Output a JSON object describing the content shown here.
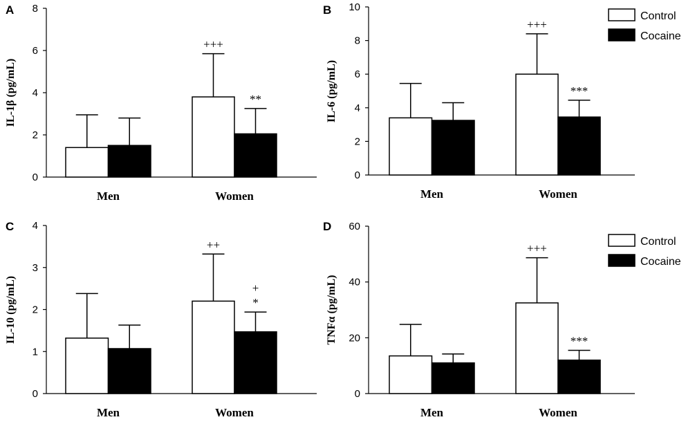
{
  "chart_data": [
    {
      "panel": "A",
      "type": "bar",
      "ylabel": "IL-1β (pg/mL)",
      "ylim": [
        0,
        8
      ],
      "yticks": [
        0,
        2,
        4,
        6,
        8
      ],
      "categories": [
        "Men",
        "Women"
      ],
      "series": [
        {
          "name": "Control",
          "values": [
            1.4,
            3.8
          ],
          "errors": [
            1.55,
            2.05
          ]
        },
        {
          "name": "Cocaine",
          "values": [
            1.5,
            2.05
          ],
          "errors": [
            1.3,
            1.2
          ]
        }
      ],
      "annotations": [
        {
          "category": "Women",
          "series": "Control",
          "lines": [
            "+++"
          ]
        },
        {
          "category": "Women",
          "series": "Cocaine",
          "lines": [
            "**"
          ]
        }
      ]
    },
    {
      "panel": "B",
      "type": "bar",
      "ylabel": "IL-6 (pg/mL)",
      "ylim": [
        0,
        10
      ],
      "yticks": [
        0,
        2,
        4,
        6,
        8,
        10
      ],
      "categories": [
        "Men",
        "Women"
      ],
      "series": [
        {
          "name": "Control",
          "values": [
            3.4,
            6.0
          ],
          "errors": [
            2.05,
            2.4
          ]
        },
        {
          "name": "Cocaine",
          "values": [
            3.25,
            3.45
          ],
          "errors": [
            1.05,
            1.0
          ]
        }
      ],
      "annotations": [
        {
          "category": "Women",
          "series": "Control",
          "lines": [
            "+++"
          ]
        },
        {
          "category": "Women",
          "series": "Cocaine",
          "lines": [
            "***"
          ]
        }
      ],
      "legend": [
        "Control",
        "Cocaine"
      ]
    },
    {
      "panel": "C",
      "type": "bar",
      "ylabel": "IL-10 (pg/mL)",
      "ylim": [
        0,
        4
      ],
      "yticks": [
        0,
        1,
        2,
        3,
        4
      ],
      "categories": [
        "Men",
        "Women"
      ],
      "series": [
        {
          "name": "Control",
          "values": [
            1.32,
            2.2
          ],
          "errors": [
            1.06,
            1.12
          ]
        },
        {
          "name": "Cocaine",
          "values": [
            1.07,
            1.47
          ],
          "errors": [
            0.56,
            0.47
          ]
        }
      ],
      "annotations": [
        {
          "category": "Women",
          "series": "Control",
          "lines": [
            "++"
          ]
        },
        {
          "category": "Women",
          "series": "Cocaine",
          "lines": [
            "+",
            "*"
          ]
        }
      ]
    },
    {
      "panel": "D",
      "type": "bar",
      "ylabel": "TNFα (pg/mL)",
      "ylim": [
        0,
        60
      ],
      "yticks": [
        0,
        20,
        40,
        60
      ],
      "categories": [
        "Men",
        "Women"
      ],
      "series": [
        {
          "name": "Control",
          "values": [
            13.5,
            32.5
          ],
          "errors": [
            11.3,
            16.2
          ]
        },
        {
          "name": "Cocaine",
          "values": [
            11.0,
            12.0
          ],
          "errors": [
            3.2,
            3.5
          ]
        }
      ],
      "annotations": [
        {
          "category": "Women",
          "series": "Control",
          "lines": [
            "+++"
          ]
        },
        {
          "category": "Women",
          "series": "Cocaine",
          "lines": [
            "***"
          ]
        }
      ],
      "legend": [
        "Control",
        "Cocaine"
      ]
    }
  ],
  "colors": {
    "Control": "#ffffff",
    "Cocaine": "#000000",
    "stroke": "#000000"
  }
}
